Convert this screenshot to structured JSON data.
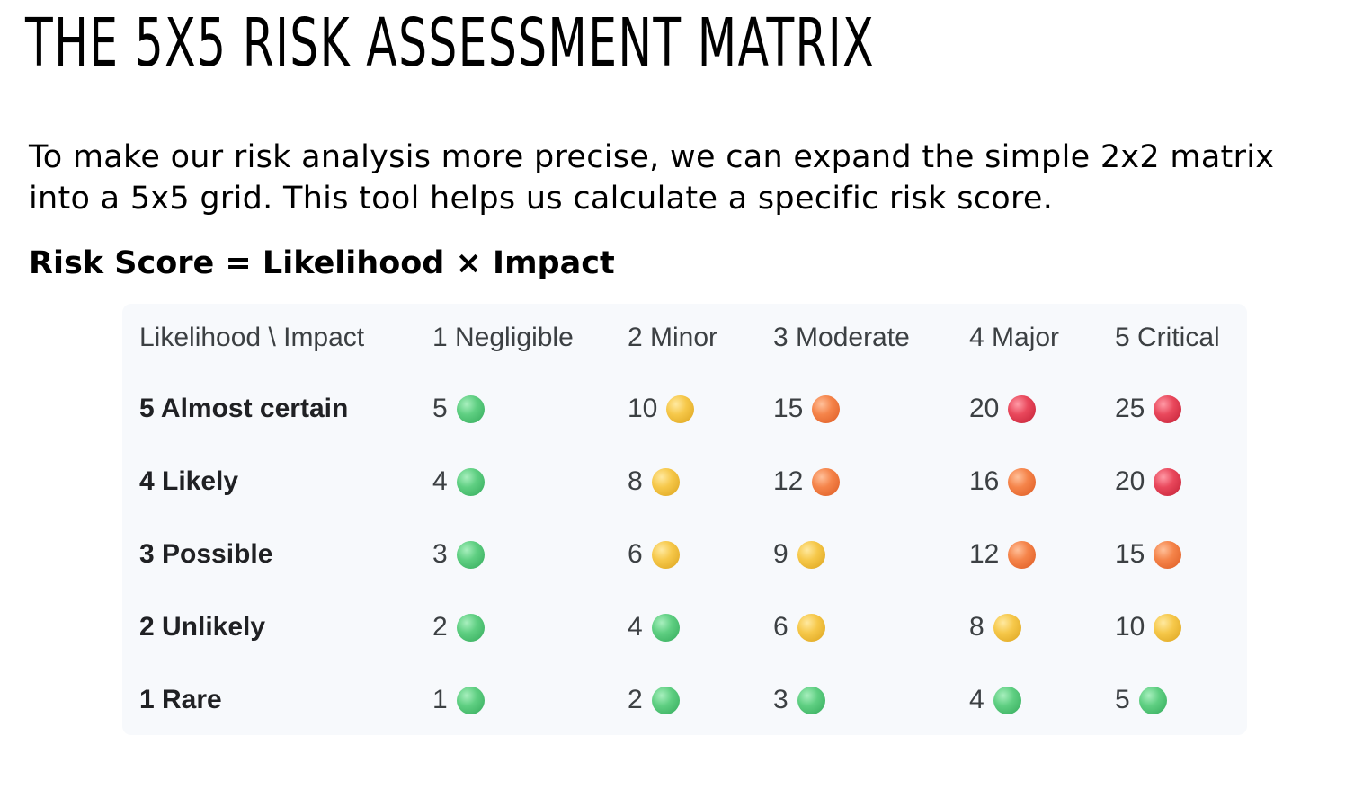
{
  "title": "THE 5X5 RISK ASSESSMENT MATRIX",
  "intro": "To make our risk analysis more precise, we can expand the simple 2x2 matrix into a 5x5 grid. This tool helps us calculate a specific risk score.",
  "formula": "Risk Score = Likelihood × Impact",
  "colors": {
    "green": "#4cc274",
    "yellow": "#f2be3c",
    "orange": "#f07a3e",
    "red": "#e23b50"
  },
  "matrix": {
    "header": [
      "Likelihood \\ Impact",
      "1 Negligible",
      "2 Minor",
      "3 Moderate",
      "4 Major",
      "5 Critical"
    ],
    "rows": [
      {
        "label": "5 Almost certain",
        "cells": [
          {
            "score": "5",
            "level": "green"
          },
          {
            "score": "10",
            "level": "yellow"
          },
          {
            "score": "15",
            "level": "orange"
          },
          {
            "score": "20",
            "level": "red"
          },
          {
            "score": "25",
            "level": "red"
          }
        ]
      },
      {
        "label": "4 Likely",
        "cells": [
          {
            "score": "4",
            "level": "green"
          },
          {
            "score": "8",
            "level": "yellow"
          },
          {
            "score": "12",
            "level": "orange"
          },
          {
            "score": "16",
            "level": "orange"
          },
          {
            "score": "20",
            "level": "red"
          }
        ]
      },
      {
        "label": "3 Possible",
        "cells": [
          {
            "score": "3",
            "level": "green"
          },
          {
            "score": "6",
            "level": "yellow"
          },
          {
            "score": "9",
            "level": "yellow"
          },
          {
            "score": "12",
            "level": "orange"
          },
          {
            "score": "15",
            "level": "orange"
          }
        ]
      },
      {
        "label": "2 Unlikely",
        "cells": [
          {
            "score": "2",
            "level": "green"
          },
          {
            "score": "4",
            "level": "green"
          },
          {
            "score": "6",
            "level": "yellow"
          },
          {
            "score": "8",
            "level": "yellow"
          },
          {
            "score": "10",
            "level": "yellow"
          }
        ]
      },
      {
        "label": "1 Rare",
        "cells": [
          {
            "score": "1",
            "level": "green"
          },
          {
            "score": "2",
            "level": "green"
          },
          {
            "score": "3",
            "level": "green"
          },
          {
            "score": "4",
            "level": "green"
          },
          {
            "score": "5",
            "level": "green"
          }
        ]
      }
    ]
  }
}
